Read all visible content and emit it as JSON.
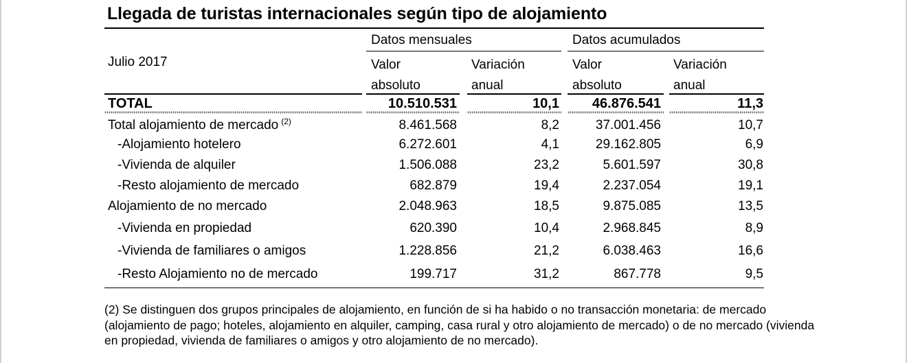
{
  "title": "Llegada de turistas internacionales según tipo de alojamiento",
  "period": "Julio 2017",
  "groups": {
    "monthly": "Datos mensuales",
    "cumulative": "Datos acumulados"
  },
  "columns": {
    "monthly_value": [
      "Valor",
      "absoluto"
    ],
    "monthly_variation": [
      "Variación",
      "anual"
    ],
    "cumulative_value": [
      "Valor",
      "absoluto"
    ],
    "cumulative_variation": [
      "Variación",
      "anual"
    ]
  },
  "total": {
    "label": "TOTAL",
    "monthly_value": "10.510.531",
    "monthly_variation": "10,1",
    "cumulative_value": "46.876.541",
    "cumulative_variation": "11,3"
  },
  "rows": [
    {
      "label": "Total alojamiento de mercado",
      "note": "(2)",
      "monthly_value": "8.461.568",
      "monthly_variation": "8,2",
      "cumulative_value": "37.001.456",
      "cumulative_variation": "10,7"
    },
    {
      "label": "-Alojamiento hotelero",
      "monthly_value": "6.272.601",
      "monthly_variation": "4,1",
      "cumulative_value": "29.162.805",
      "cumulative_variation": "6,9"
    },
    {
      "label": "-Vivienda de alquiler",
      "monthly_value": "1.506.088",
      "monthly_variation": "23,2",
      "cumulative_value": "5.601.597",
      "cumulative_variation": "30,8"
    },
    {
      "label": "-Resto alojamiento de mercado",
      "monthly_value": "682.879",
      "monthly_variation": "19,4",
      "cumulative_value": "2.237.054",
      "cumulative_variation": "19,1"
    },
    {
      "label": "Alojamiento de no mercado",
      "monthly_value": "2.048.963",
      "monthly_variation": "18,5",
      "cumulative_value": "9.875.085",
      "cumulative_variation": "13,5"
    },
    {
      "label": "-Vivienda en propiedad",
      "monthly_value": "620.390",
      "monthly_variation": "10,4",
      "cumulative_value": "2.968.845",
      "cumulative_variation": "8,9"
    },
    {
      "label": "-Vivienda de familiares o amigos",
      "monthly_value": "1.228.856",
      "monthly_variation": "21,2",
      "cumulative_value": "6.038.463",
      "cumulative_variation": "16,6"
    },
    {
      "label": "-Resto Alojamiento no de mercado",
      "monthly_value": "199.717",
      "monthly_variation": "31,2",
      "cumulative_value": "867.778",
      "cumulative_variation": "9,5"
    }
  ],
  "footnote": "(2) Se distinguen dos grupos principales de alojamiento, en función de si ha habido o no transacción monetaria: de mercado (alojamiento de pago; hoteles, alojamiento en alquiler, camping, casa rural y otro alojamiento de mercado) o de no mercado (vivienda en propiedad, vivienda de familiares o amigos y otro alojamiento de no mercado)."
}
